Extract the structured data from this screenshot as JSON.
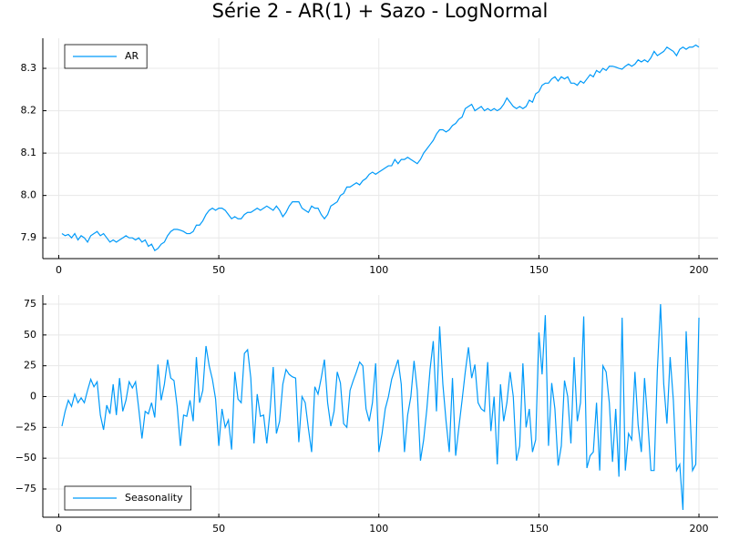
{
  "title": "Série 2 - AR(1) + Sazo - LogNormal",
  "chart_data": [
    {
      "type": "line",
      "color": "#009af9",
      "grid": true,
      "legend": "top-left",
      "x": [
        1,
        2,
        3,
        4,
        5,
        6,
        7,
        8,
        9,
        10,
        11,
        12,
        13,
        14,
        15,
        16,
        17,
        18,
        19,
        20,
        21,
        22,
        23,
        24,
        25,
        26,
        27,
        28,
        29,
        30,
        31,
        32,
        33,
        34,
        35,
        36,
        37,
        38,
        39,
        40,
        41,
        42,
        43,
        44,
        45,
        46,
        47,
        48,
        49,
        50,
        51,
        52,
        53,
        54,
        55,
        56,
        57,
        58,
        59,
        60,
        61,
        62,
        63,
        64,
        65,
        66,
        67,
        68,
        69,
        70,
        71,
        72,
        73,
        74,
        75,
        76,
        77,
        78,
        79,
        80,
        81,
        82,
        83,
        84,
        85,
        86,
        87,
        88,
        89,
        90,
        91,
        92,
        93,
        94,
        95,
        96,
        97,
        98,
        99,
        100,
        101,
        102,
        103,
        104,
        105,
        106,
        107,
        108,
        109,
        110,
        111,
        112,
        113,
        114,
        115,
        116,
        117,
        118,
        119,
        120,
        121,
        122,
        123,
        124,
        125,
        126,
        127,
        128,
        129,
        130,
        131,
        132,
        133,
        134,
        135,
        136,
        137,
        138,
        139,
        140,
        141,
        142,
        143,
        144,
        145,
        146,
        147,
        148,
        149,
        150,
        151,
        152,
        153,
        154,
        155,
        156,
        157,
        158,
        159,
        160,
        161,
        162,
        163,
        164,
        165,
        166,
        167,
        168,
        169,
        170,
        171,
        172,
        173,
        174,
        175,
        176,
        177,
        178,
        179,
        180,
        181,
        182,
        183,
        184,
        185,
        186,
        187,
        188,
        189,
        190,
        191,
        192,
        193,
        194,
        195,
        196,
        197,
        198,
        199,
        200
      ],
      "series": [
        {
          "name": "AR",
          "color": "#009af9",
          "values": [
            7.91,
            7.905,
            7.908,
            7.9,
            7.91,
            7.895,
            7.905,
            7.9,
            7.89,
            7.905,
            7.91,
            7.915,
            7.905,
            7.91,
            7.9,
            7.89,
            7.895,
            7.89,
            7.895,
            7.9,
            7.905,
            7.9,
            7.9,
            7.895,
            7.9,
            7.89,
            7.895,
            7.88,
            7.885,
            7.87,
            7.875,
            7.885,
            7.89,
            7.905,
            7.915,
            7.92,
            7.92,
            7.918,
            7.915,
            7.91,
            7.91,
            7.915,
            7.93,
            7.93,
            7.94,
            7.955,
            7.965,
            7.97,
            7.965,
            7.97,
            7.97,
            7.965,
            7.955,
            7.945,
            7.95,
            7.945,
            7.945,
            7.955,
            7.96,
            7.96,
            7.965,
            7.97,
            7.965,
            7.97,
            7.975,
            7.97,
            7.965,
            7.975,
            7.965,
            7.95,
            7.96,
            7.975,
            7.985,
            7.985,
            7.985,
            7.97,
            7.965,
            7.96,
            7.975,
            7.97,
            7.97,
            7.955,
            7.945,
            7.955,
            7.975,
            7.98,
            7.985,
            8.0,
            8.005,
            8.02,
            8.02,
            8.025,
            8.03,
            8.025,
            8.035,
            8.04,
            8.05,
            8.055,
            8.05,
            8.055,
            8.06,
            8.065,
            8.07,
            8.07,
            8.085,
            8.075,
            8.085,
            8.085,
            8.09,
            8.085,
            8.08,
            8.075,
            8.085,
            8.1,
            8.11,
            8.12,
            8.13,
            8.145,
            8.155,
            8.155,
            8.15,
            8.155,
            8.165,
            8.17,
            8.18,
            8.185,
            8.205,
            8.21,
            8.215,
            8.2,
            8.205,
            8.21,
            8.2,
            8.205,
            8.2,
            8.205,
            8.2,
            8.205,
            8.215,
            8.23,
            8.22,
            8.21,
            8.205,
            8.21,
            8.205,
            8.21,
            8.225,
            8.22,
            8.24,
            8.245,
            8.26,
            8.265,
            8.265,
            8.275,
            8.28,
            8.27,
            8.28,
            8.275,
            8.28,
            8.265,
            8.265,
            8.26,
            8.27,
            8.265,
            8.275,
            8.285,
            8.28,
            8.295,
            8.29,
            8.3,
            8.295,
            8.305,
            8.305,
            8.303,
            8.3,
            8.298,
            8.305,
            8.31,
            8.305,
            8.31,
            8.32,
            8.315,
            8.32,
            8.315,
            8.325,
            8.34,
            8.33,
            8.335,
            8.34,
            8.35,
            8.345,
            8.34,
            8.33,
            8.345,
            8.35,
            8.345,
            8.35,
            8.35,
            8.355,
            8.35
          ]
        }
      ],
      "xlim": [
        -4.97,
        205.97
      ],
      "xticks": [
        0,
        50,
        100,
        150,
        200
      ],
      "ylim": [
        7.851,
        8.371
      ],
      "yticks": [
        7.9,
        {
          "value": 8,
          "label": "8.0"
        },
        8.1,
        8.2,
        8.3
      ]
    },
    {
      "type": "line",
      "color": "#009af9",
      "grid": true,
      "legend": "bottom-left",
      "x": [
        1,
        2,
        3,
        4,
        5,
        6,
        7,
        8,
        9,
        10,
        11,
        12,
        13,
        14,
        15,
        16,
        17,
        18,
        19,
        20,
        21,
        22,
        23,
        24,
        25,
        26,
        27,
        28,
        29,
        30,
        31,
        32,
        33,
        34,
        35,
        36,
        37,
        38,
        39,
        40,
        41,
        42,
        43,
        44,
        45,
        46,
        47,
        48,
        49,
        50,
        51,
        52,
        53,
        54,
        55,
        56,
        57,
        58,
        59,
        60,
        61,
        62,
        63,
        64,
        65,
        66,
        67,
        68,
        69,
        70,
        71,
        72,
        73,
        74,
        75,
        76,
        77,
        78,
        79,
        80,
        81,
        82,
        83,
        84,
        85,
        86,
        87,
        88,
        89,
        90,
        91,
        92,
        93,
        94,
        95,
        96,
        97,
        98,
        99,
        100,
        101,
        102,
        103,
        104,
        105,
        106,
        107,
        108,
        109,
        110,
        111,
        112,
        113,
        114,
        115,
        116,
        117,
        118,
        119,
        120,
        121,
        122,
        123,
        124,
        125,
        126,
        127,
        128,
        129,
        130,
        131,
        132,
        133,
        134,
        135,
        136,
        137,
        138,
        139,
        140,
        141,
        142,
        143,
        144,
        145,
        146,
        147,
        148,
        149,
        150,
        151,
        152,
        153,
        154,
        155,
        156,
        157,
        158,
        159,
        160,
        161,
        162,
        163,
        164,
        165,
        166,
        167,
        168,
        169,
        170,
        171,
        172,
        173,
        174,
        175,
        176,
        177,
        178,
        179,
        180,
        181,
        182,
        183,
        184,
        185,
        186,
        187,
        188,
        189,
        190,
        191,
        192,
        193,
        194,
        195,
        196,
        197,
        198,
        199,
        200
      ],
      "series": [
        {
          "name": "Seasonality",
          "color": "#009af9",
          "values": [
            -24,
            -12,
            -3,
            -8,
            2,
            -5,
            -1,
            -5,
            5,
            14,
            8,
            12,
            -15,
            -27,
            -7,
            -14,
            10,
            -15,
            15,
            -12,
            -3,
            12,
            7,
            12,
            -10,
            -34,
            -12,
            -14,
            -5,
            -17,
            26,
            -3,
            10,
            30,
            15,
            13,
            -8,
            -40,
            -15,
            -16,
            -3,
            -20,
            32,
            -5,
            5,
            41,
            25,
            14,
            -2,
            -40,
            -10,
            -25,
            -19,
            -43,
            20,
            -2,
            -5,
            35,
            38,
            15,
            -38,
            2,
            -16,
            -15,
            -38,
            -12,
            24,
            -30,
            -20,
            10,
            22,
            18,
            16,
            15,
            -37,
            0,
            -5,
            -26,
            -45,
            8,
            2,
            15,
            30,
            -5,
            -24,
            -12,
            20,
            11,
            -22,
            -25,
            5,
            13,
            20,
            28,
            25,
            -10,
            -20,
            -5,
            27,
            -45,
            -30,
            -10,
            0,
            14,
            22,
            30,
            10,
            -45,
            -15,
            0,
            29,
            5,
            -52,
            -35,
            -10,
            22,
            45,
            -12,
            57,
            10,
            -20,
            -45,
            15,
            -48,
            -25,
            -3,
            20,
            40,
            15,
            26,
            -5,
            -10,
            -12,
            28,
            -28,
            0,
            -55,
            10,
            -20,
            -5,
            20,
            0,
            -52,
            -40,
            27,
            -25,
            -10,
            -45,
            -35,
            52,
            18,
            66,
            -40,
            11,
            -10,
            -56,
            -40,
            13,
            0,
            -38,
            32,
            -20,
            -5,
            65,
            -58,
            -48,
            -45,
            -5,
            -60,
            25,
            20,
            -5,
            -53,
            -10,
            -65,
            64,
            -60,
            -30,
            -35,
            20,
            -23,
            -45,
            15,
            -20,
            -60,
            -60,
            21,
            75,
            10,
            -22,
            32,
            -3,
            -60,
            -55,
            -92,
            53,
            -1,
            -60,
            -55,
            64
          ]
        }
      ],
      "xlim": [
        -4.97,
        205.97
      ],
      "xticks": [
        0,
        50,
        100,
        150,
        200
      ],
      "ylim": [
        -97.9,
        82.4
      ],
      "yticks": [
        {
          "value": -75,
          "label": "−75"
        },
        {
          "value": -50,
          "label": "−50"
        },
        {
          "value": -25,
          "label": "−25"
        },
        0,
        25,
        50,
        75
      ]
    }
  ]
}
